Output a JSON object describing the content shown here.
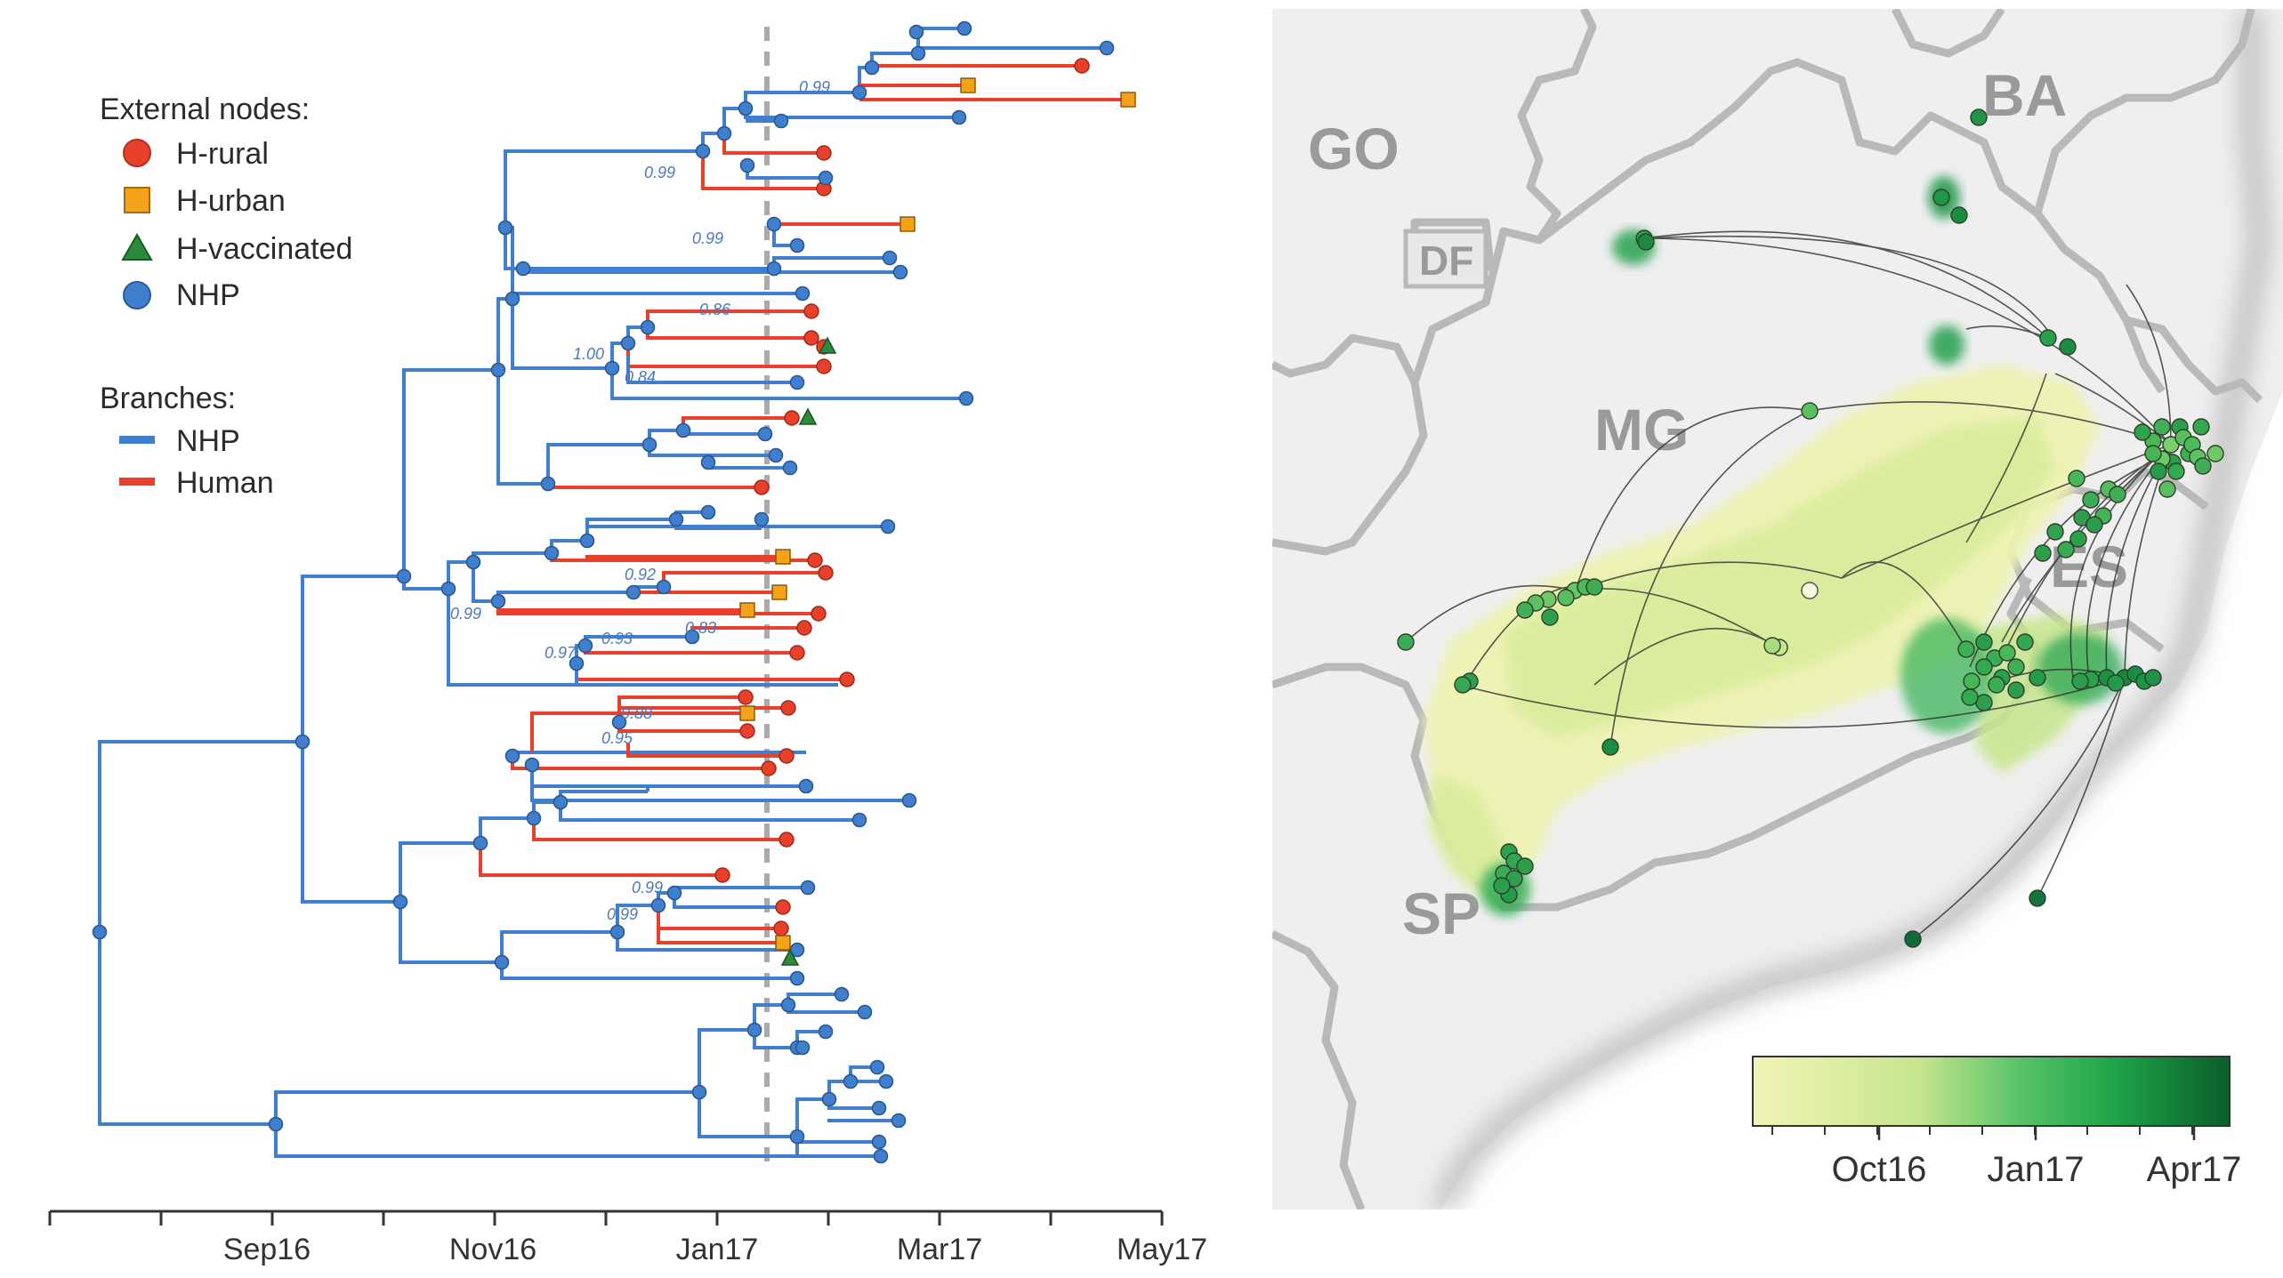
{
  "legend": {
    "external_title": "External nodes:",
    "items": [
      {
        "label": "H-rural",
        "shape": "circle",
        "color": "#e8402a"
      },
      {
        "label": "H-urban",
        "shape": "square",
        "color": "#f5a21b"
      },
      {
        "label": "H-vaccinated",
        "shape": "triangle",
        "color": "#2c8a3c"
      },
      {
        "label": "NHP",
        "shape": "circle",
        "color": "#3f7fce"
      }
    ],
    "branches_title": "Branches:",
    "branches": [
      {
        "label": "NHP",
        "color": "#3f7fce"
      },
      {
        "label": "Human",
        "color": "#e8402a"
      }
    ]
  },
  "axis": {
    "ticks": [
      "Sep16",
      "Nov16",
      "Jan17",
      "Mar17",
      "May17"
    ]
  },
  "supports": [
    "0.99",
    "0.99",
    "0.99",
    "0.86",
    "1.00",
    "0.84",
    "0.92",
    "0.99",
    "0.97",
    "0.93",
    "0.83",
    "0.88",
    "0.95",
    "0.99",
    "0.99"
  ],
  "map": {
    "states": [
      "GO",
      "DF",
      "BA",
      "MG",
      "ES",
      "SP"
    ],
    "colorbar_ticks": [
      "Oct16",
      "Jan17",
      "Apr17"
    ],
    "colors": {
      "light": "#f0f3b8",
      "mid": "#8fd17e",
      "dark": "#0e6b2e"
    }
  }
}
